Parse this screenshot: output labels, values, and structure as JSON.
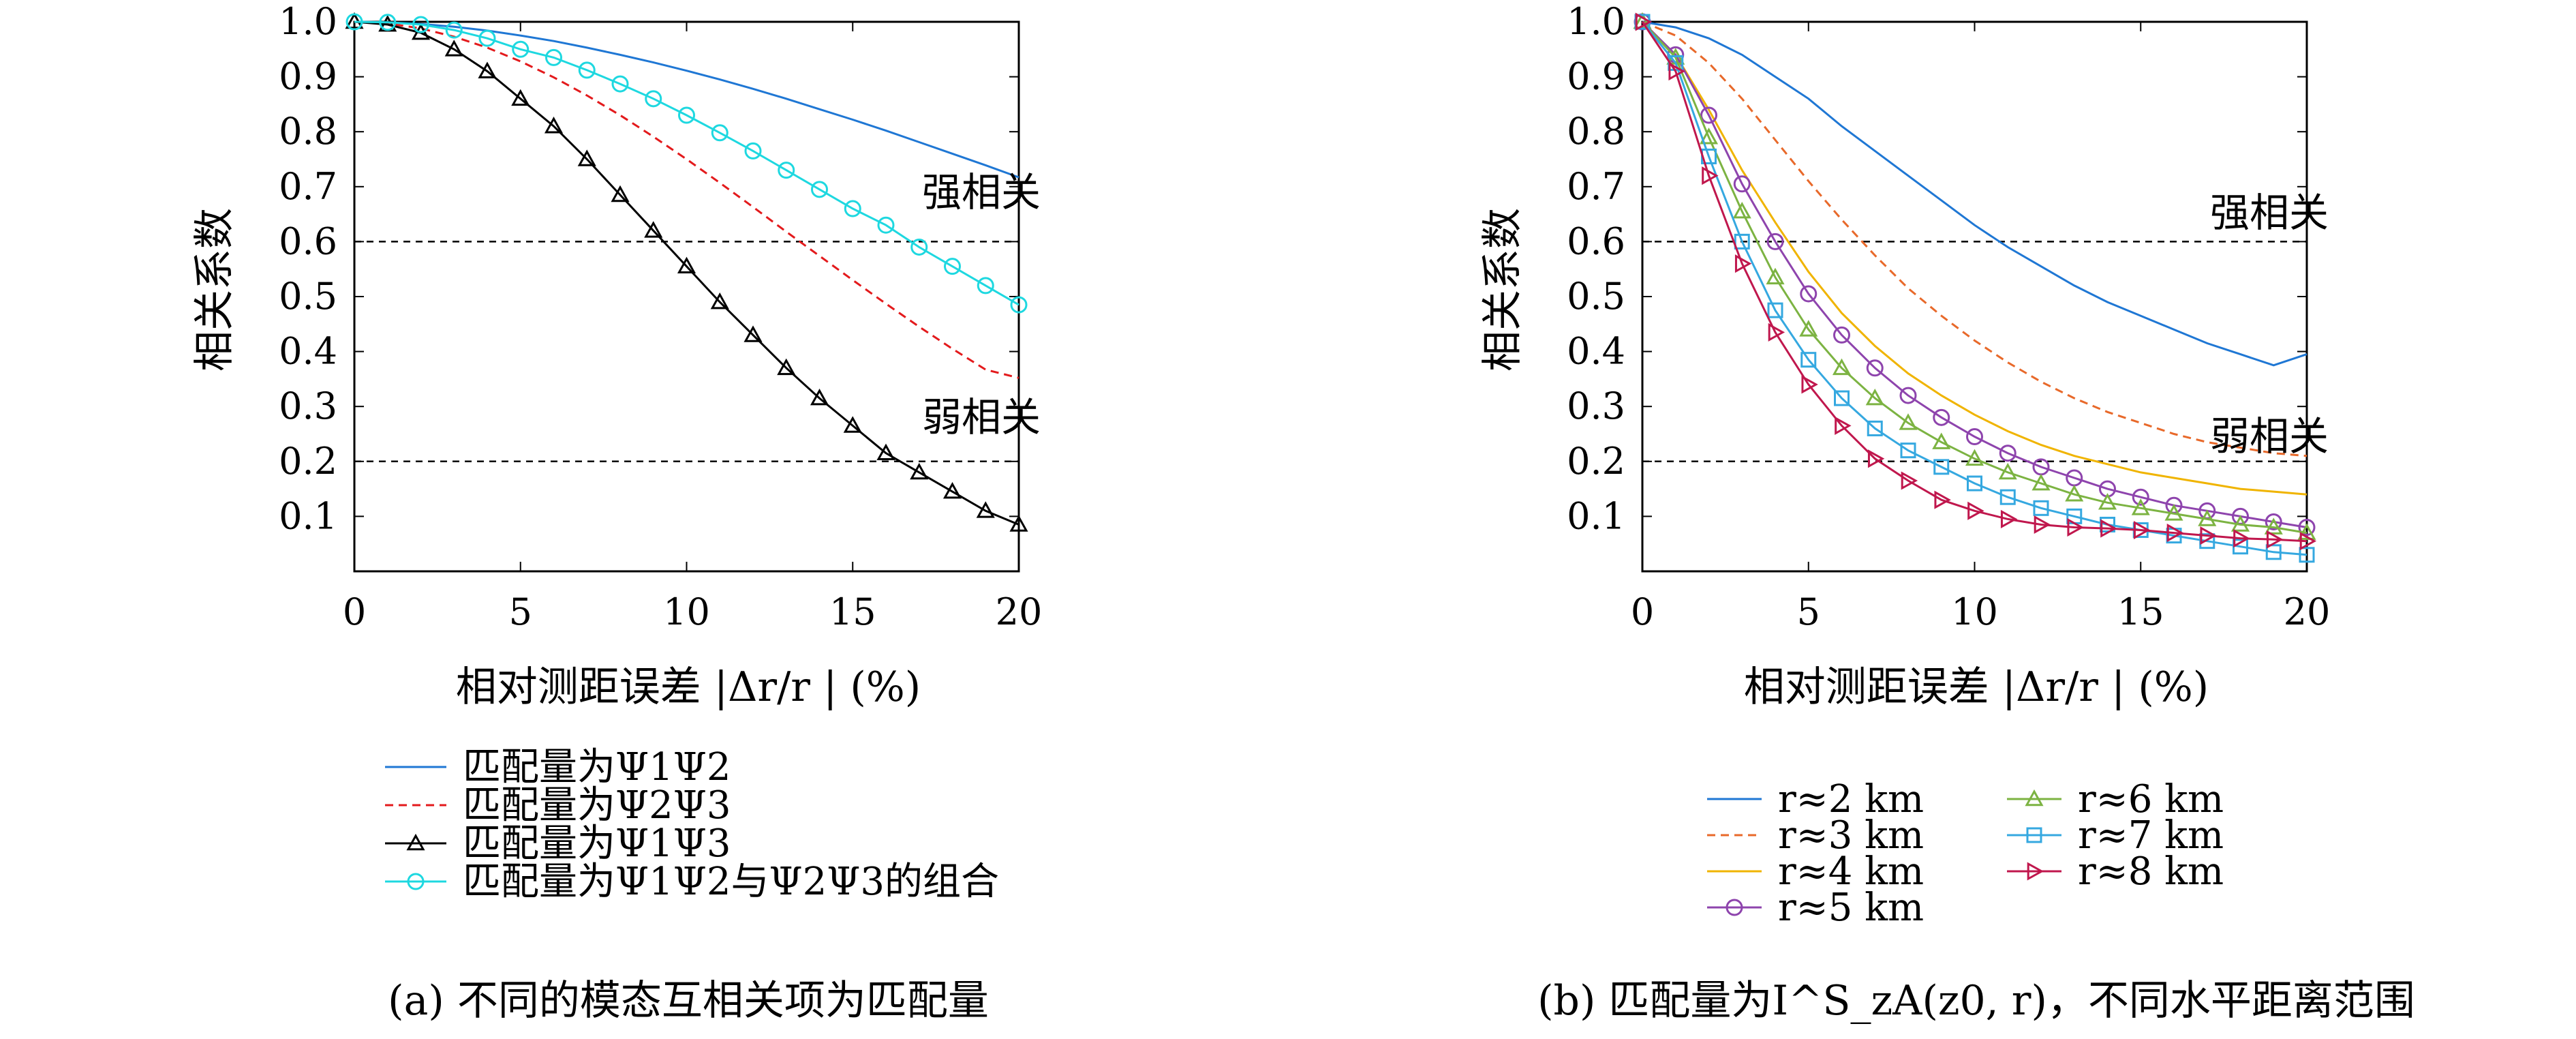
{
  "charts": [
    {
      "ylabel": "相关系数",
      "xlabel": "相对测距误差 |Δr/r | (%)",
      "caption": "(a) 不同的模态互相关项为匹配量",
      "xticks": [
        "0",
        "5",
        "10",
        "15",
        "20"
      ],
      "yticks": [
        "0.1",
        "0.2",
        "0.3",
        "0.4",
        "0.5",
        "0.6",
        "0.7",
        "0.8",
        "0.9",
        "1.0"
      ],
      "strong_label": "强相关",
      "weak_label": "弱相关"
    },
    {
      "ylabel": "相关系数",
      "xlabel": "相对测距误差 |Δr/r | (%)",
      "caption": "(b) 匹配量为I^S_zA(z0, r)，不同水平距离范围",
      "xticks": [
        "0",
        "5",
        "10",
        "15",
        "20"
      ],
      "yticks": [
        "0.1",
        "0.2",
        "0.3",
        "0.4",
        "0.5",
        "0.6",
        "0.7",
        "0.8",
        "0.9",
        "1.0"
      ],
      "strong_label": "强相关",
      "weak_label": "弱相关"
    }
  ],
  "chart_data": [
    {
      "type": "line",
      "xlim": [
        0,
        20
      ],
      "ylim": [
        0,
        1.0
      ],
      "grid": false,
      "legend_position": "bottom",
      "reference_lines": [
        0.6,
        0.2
      ],
      "series": [
        {
          "name": "匹配量为Ψ1Ψ2",
          "color": "#1f77d4",
          "style": "solid",
          "marker": "none",
          "x": [
            0,
            1,
            2,
            3,
            4,
            5,
            6,
            7,
            8,
            9,
            10,
            11,
            12,
            13,
            14,
            15,
            16,
            17,
            18,
            19,
            20
          ],
          "y": [
            1.0,
            0.999,
            0.996,
            0.991,
            0.984,
            0.975,
            0.965,
            0.953,
            0.94,
            0.926,
            0.911,
            0.895,
            0.878,
            0.86,
            0.841,
            0.822,
            0.802,
            0.781,
            0.76,
            0.739,
            0.717
          ]
        },
        {
          "name": "匹配量为Ψ2Ψ3",
          "color": "#e31a1c",
          "style": "dashed",
          "marker": "none",
          "x": [
            0,
            1,
            2,
            3,
            4,
            5,
            6,
            7,
            8,
            9,
            10,
            11,
            12,
            13,
            14,
            15,
            16,
            17,
            18,
            19,
            20
          ],
          "y": [
            1.0,
            0.997,
            0.988,
            0.973,
            0.953,
            0.928,
            0.899,
            0.866,
            0.83,
            0.791,
            0.75,
            0.707,
            0.663,
            0.618,
            0.574,
            0.53,
            0.487,
            0.445,
            0.405,
            0.367,
            0.352
          ]
        },
        {
          "name": "匹配量为Ψ1Ψ3",
          "color": "#000000",
          "style": "solid",
          "marker": "triangle",
          "x": [
            0,
            1,
            2,
            3,
            4,
            5,
            6,
            7,
            8,
            9,
            10,
            11,
            12,
            13,
            14,
            15,
            16,
            17,
            18,
            19,
            20
          ],
          "y": [
            1.0,
            0.995,
            0.98,
            0.95,
            0.91,
            0.86,
            0.81,
            0.75,
            0.685,
            0.62,
            0.555,
            0.49,
            0.43,
            0.37,
            0.315,
            0.265,
            0.215,
            0.18,
            0.145,
            0.11,
            0.085
          ]
        },
        {
          "name": "匹配量为Ψ1Ψ2与Ψ2Ψ3的组合",
          "color": "#1ed8e0",
          "style": "solid",
          "marker": "circle",
          "x": [
            0,
            1,
            2,
            3,
            4,
            5,
            6,
            7,
            8,
            9,
            10,
            11,
            12,
            13,
            14,
            15,
            16,
            17,
            18,
            19,
            20
          ],
          "y": [
            1.0,
            0.999,
            0.995,
            0.985,
            0.97,
            0.95,
            0.935,
            0.912,
            0.887,
            0.86,
            0.83,
            0.798,
            0.765,
            0.73,
            0.695,
            0.66,
            0.63,
            0.59,
            0.555,
            0.52,
            0.485
          ]
        }
      ]
    },
    {
      "type": "line",
      "xlim": [
        0,
        20
      ],
      "ylim": [
        0,
        1.0
      ],
      "grid": false,
      "legend_position": "bottom",
      "reference_lines": [
        0.6,
        0.2
      ],
      "series": [
        {
          "name": "r≈2 km",
          "color": "#1f77d4",
          "style": "solid",
          "marker": "none",
          "x": [
            0,
            1,
            2,
            3,
            4,
            5,
            6,
            7,
            8,
            9,
            10,
            11,
            12,
            13,
            14,
            15,
            16,
            17,
            18,
            19,
            20
          ],
          "y": [
            1.0,
            0.99,
            0.97,
            0.94,
            0.9,
            0.86,
            0.81,
            0.765,
            0.72,
            0.675,
            0.63,
            0.59,
            0.555,
            0.52,
            0.49,
            0.465,
            0.44,
            0.415,
            0.395,
            0.375,
            0.395
          ]
        },
        {
          "name": "r≈3 km",
          "color": "#e8692a",
          "style": "dashed",
          "marker": "none",
          "x": [
            0,
            1,
            2,
            3,
            4,
            5,
            6,
            7,
            8,
            9,
            10,
            11,
            12,
            13,
            14,
            15,
            16,
            17,
            18,
            19,
            20
          ],
          "y": [
            1.0,
            0.975,
            0.925,
            0.86,
            0.785,
            0.71,
            0.64,
            0.575,
            0.515,
            0.465,
            0.42,
            0.38,
            0.345,
            0.315,
            0.29,
            0.27,
            0.25,
            0.235,
            0.225,
            0.215,
            0.21
          ]
        },
        {
          "name": "r≈4 km",
          "color": "#f0b400",
          "style": "solid",
          "marker": "none",
          "x": [
            0,
            1,
            2,
            3,
            4,
            5,
            6,
            7,
            8,
            9,
            10,
            11,
            12,
            13,
            14,
            15,
            16,
            17,
            18,
            19,
            20
          ],
          "y": [
            1.0,
            0.94,
            0.84,
            0.73,
            0.635,
            0.545,
            0.47,
            0.41,
            0.36,
            0.32,
            0.285,
            0.255,
            0.23,
            0.21,
            0.195,
            0.18,
            0.17,
            0.16,
            0.15,
            0.145,
            0.14
          ]
        },
        {
          "name": "r≈5 km",
          "color": "#8e44ad",
          "style": "solid",
          "marker": "circle",
          "x": [
            0,
            1,
            2,
            3,
            4,
            5,
            6,
            7,
            8,
            9,
            10,
            11,
            12,
            13,
            14,
            15,
            16,
            17,
            18,
            19,
            20
          ],
          "y": [
            1.0,
            0.94,
            0.83,
            0.705,
            0.6,
            0.505,
            0.43,
            0.37,
            0.32,
            0.28,
            0.245,
            0.215,
            0.19,
            0.17,
            0.15,
            0.135,
            0.12,
            0.11,
            0.1,
            0.09,
            0.08
          ]
        },
        {
          "name": "r≈6 km",
          "color": "#7cb342",
          "style": "solid",
          "marker": "triangle",
          "x": [
            0,
            1,
            2,
            3,
            4,
            5,
            6,
            7,
            8,
            9,
            10,
            11,
            12,
            13,
            14,
            15,
            16,
            17,
            18,
            19,
            20
          ],
          "y": [
            1.0,
            0.935,
            0.79,
            0.655,
            0.535,
            0.44,
            0.37,
            0.315,
            0.27,
            0.235,
            0.205,
            0.18,
            0.16,
            0.14,
            0.125,
            0.115,
            0.105,
            0.095,
            0.085,
            0.08,
            0.07
          ]
        },
        {
          "name": "r≈7 km",
          "color": "#35a8e0",
          "style": "solid",
          "marker": "square",
          "x": [
            0,
            1,
            2,
            3,
            4,
            5,
            6,
            7,
            8,
            9,
            10,
            11,
            12,
            13,
            14,
            15,
            16,
            17,
            18,
            19,
            20
          ],
          "y": [
            1.0,
            0.925,
            0.755,
            0.6,
            0.475,
            0.385,
            0.315,
            0.26,
            0.22,
            0.19,
            0.16,
            0.135,
            0.115,
            0.1,
            0.085,
            0.075,
            0.065,
            0.055,
            0.045,
            0.035,
            0.03
          ]
        },
        {
          "name": "r≈8 km",
          "color": "#c0174d",
          "style": "solid",
          "marker": "triangle-right",
          "x": [
            0,
            1,
            2,
            3,
            4,
            5,
            6,
            7,
            8,
            9,
            10,
            11,
            12,
            13,
            14,
            15,
            16,
            17,
            18,
            19,
            20
          ],
          "y": [
            1.0,
            0.91,
            0.72,
            0.56,
            0.435,
            0.34,
            0.265,
            0.205,
            0.165,
            0.13,
            0.11,
            0.095,
            0.085,
            0.08,
            0.078,
            0.075,
            0.07,
            0.065,
            0.06,
            0.058,
            0.055
          ]
        }
      ]
    }
  ]
}
